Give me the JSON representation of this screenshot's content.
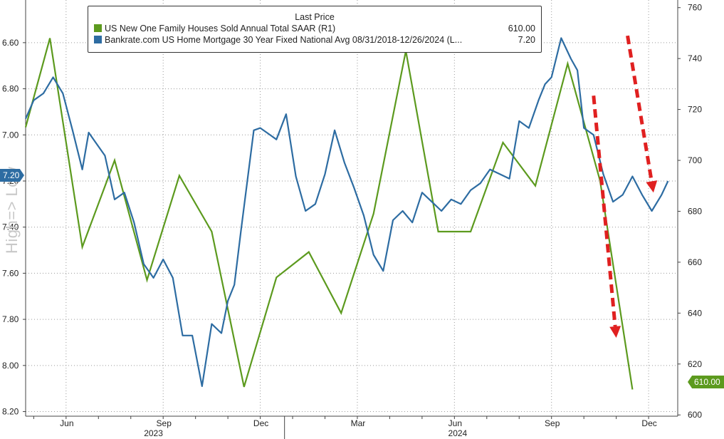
{
  "chart_data": {
    "type": "line",
    "legend_title": "Last Price",
    "legend_placement": "top-left",
    "y_left": {
      "ticks": [
        "6.60",
        "6.80",
        "7.00",
        "7.20",
        "7.40",
        "7.60",
        "7.80",
        "8.00",
        "8.20"
      ],
      "range": [
        6.415,
        8.22
      ],
      "inverted": true,
      "label": "High=> Low"
    },
    "y_right": {
      "ticks": [
        "600",
        "620",
        "640",
        "660",
        "680",
        "700",
        "720",
        "740",
        "760"
      ],
      "range": [
        599.5,
        763
      ]
    },
    "x_ticks": [
      "Jun",
      "Sep",
      "Dec",
      "Mar",
      "Jun",
      "Sep",
      "Dec"
    ],
    "x_ticks_months": [
      1.0,
      4.0,
      7.0,
      10.0,
      13.0,
      16.0,
      19.0
    ],
    "x_range_months": [
      -0.25,
      19.9
    ],
    "x_years": [
      {
        "label": "2023",
        "at": 3.7
      },
      {
        "label": "2024",
        "at": 13.1
      }
    ],
    "year_divider_month": 7.75,
    "series": [
      {
        "name": "US New One Family Houses Sold Annual Total SAAR  (R1)",
        "last": "610.00",
        "color": "#5c9a1e",
        "axis": "right",
        "x": [
          -0.25,
          0.5,
          1.5,
          2.5,
          3.5,
          4.5,
          5.5,
          6.5,
          7.5,
          8.5,
          9.5,
          10.5,
          11.5,
          12.5,
          13.5,
          14.5,
          15.5,
          16.5,
          17.5,
          18.5
        ],
        "values": [
          713,
          748,
          666,
          700,
          653,
          694,
          672,
          611,
          654,
          664,
          640,
          679,
          743,
          672,
          672,
          707,
          690,
          738,
          692,
          610
        ]
      },
      {
        "name": "Bankrate.com US Home Mortgage 30 Year Fixed National Avg 08/31/2018-12/26/2024   (L...",
        "last": "7.20",
        "color": "#2d6ca2",
        "axis": "left",
        "x": [
          -0.25,
          0.0,
          0.3,
          0.6,
          0.9,
          1.2,
          1.5,
          1.7,
          1.9,
          2.2,
          2.5,
          2.8,
          3.1,
          3.4,
          3.7,
          4.0,
          4.3,
          4.6,
          4.9,
          5.2,
          5.5,
          5.8,
          6.0,
          6.2,
          6.4,
          6.6,
          6.8,
          7.0,
          7.2,
          7.5,
          7.8,
          8.1,
          8.4,
          8.7,
          9.0,
          9.3,
          9.6,
          9.9,
          10.2,
          10.5,
          10.8,
          11.1,
          11.4,
          11.7,
          12.0,
          12.3,
          12.6,
          12.9,
          13.2,
          13.5,
          13.8,
          14.1,
          14.4,
          14.7,
          15.0,
          15.3,
          15.6,
          15.8,
          16.0,
          16.3,
          16.6,
          16.8,
          17.0,
          17.3,
          17.6,
          17.9,
          18.2,
          18.5,
          18.8,
          19.1,
          19.4,
          19.6
        ],
        "values": [
          6.93,
          6.85,
          6.82,
          6.75,
          6.82,
          6.98,
          7.15,
          6.99,
          7.03,
          7.09,
          7.28,
          7.25,
          7.38,
          7.56,
          7.62,
          7.54,
          7.62,
          7.87,
          7.87,
          8.09,
          7.82,
          7.86,
          7.72,
          7.65,
          7.42,
          7.2,
          6.98,
          6.97,
          6.99,
          7.02,
          6.91,
          7.18,
          7.33,
          7.3,
          7.17,
          6.98,
          7.12,
          7.23,
          7.35,
          7.52,
          7.59,
          7.37,
          7.33,
          7.38,
          7.25,
          7.29,
          7.33,
          7.28,
          7.3,
          7.24,
          7.21,
          7.15,
          7.17,
          7.19,
          6.94,
          6.97,
          6.85,
          6.78,
          6.75,
          6.58,
          6.67,
          6.72,
          6.97,
          7.0,
          7.17,
          7.29,
          7.26,
          7.18,
          7.26,
          7.33,
          7.26,
          7.2
        ]
      }
    ],
    "annotations": [
      {
        "type": "dashed-arrow",
        "color": "#e02020",
        "x": [
          18.35,
          19.15
        ],
        "values_left": [
          6.57,
          7.25
        ]
      },
      {
        "type": "dashed-arrow",
        "color": "#e02020",
        "x": [
          17.3,
          18.0
        ],
        "values_left": [
          6.83,
          7.88
        ]
      }
    ],
    "last_value_badges": {
      "left": "7.20",
      "right": "610.00"
    }
  }
}
